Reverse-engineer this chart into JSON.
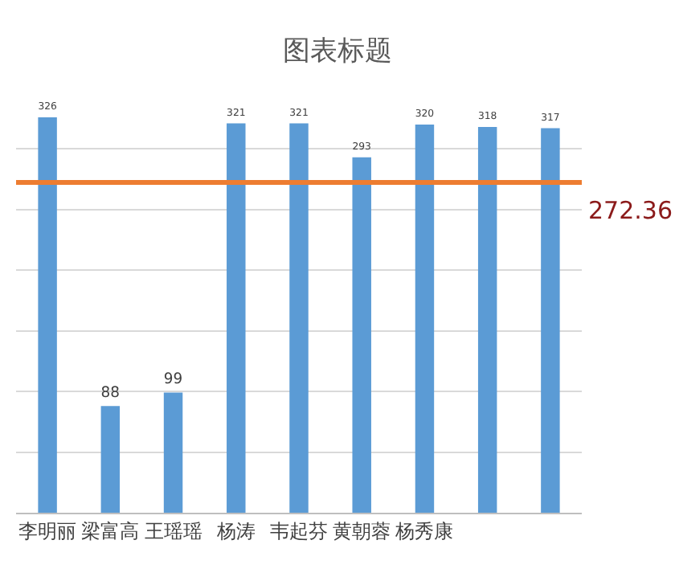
{
  "chart_data": {
    "type": "bar",
    "title": "图表标题",
    "categories": [
      "李明丽",
      "梁富高",
      "王瑶瑶",
      "杨涛",
      "韦起芬",
      "黄朝蓉",
      "杨秀康",
      null,
      null
    ],
    "values": [
      326,
      88,
      99,
      321,
      321,
      293,
      320,
      318,
      317
    ],
    "color": "#5b9bd5",
    "tick_labels": "x",
    "grid": "y",
    "data_labels": true,
    "ref_lines": [
      {
        "axis": "y",
        "value": 272.36,
        "label": "272.36",
        "color": "#ed7d31"
      }
    ]
  }
}
